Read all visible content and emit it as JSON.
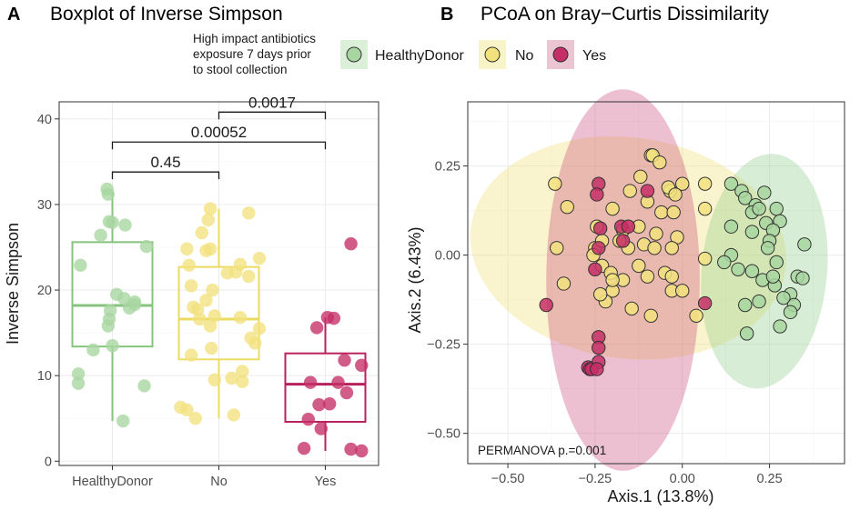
{
  "colors": {
    "HealthyDonor": "#86c47e",
    "No": "#ecdb62",
    "Yes": "#b8215d",
    "HealthyDonor_fill": "#a8d6a0",
    "No_fill": "#f2e27e",
    "Yes_fill": "#c52e66",
    "grid": "#ebebeb",
    "border": "#333333"
  },
  "legend": {
    "title_lines": [
      "High impact antibiotics",
      "exposure 7 days prior",
      "to stool collection"
    ],
    "items": [
      "HealthyDonor",
      "No",
      "Yes"
    ]
  },
  "chart_data": [
    {
      "panel": "A",
      "type": "box",
      "title": "Boxplot of Inverse Simpson",
      "xlabel": "",
      "ylabel": "Inverse Simpson",
      "ylim": [
        -0.5,
        42
      ],
      "yticks": [
        0,
        10,
        20,
        30,
        40
      ],
      "categories": [
        "HealthyDonor",
        "No",
        "Yes"
      ],
      "boxes": [
        {
          "group": "HealthyDonor",
          "q1": 13.4,
          "median": 18.2,
          "q3": 25.6,
          "whisker_low": 4.7,
          "whisker_high": 31.6
        },
        {
          "group": "No",
          "q1": 11.9,
          "median": 16.6,
          "q3": 22.7,
          "whisker_low": 5.0,
          "whisker_high": 29.5
        },
        {
          "group": "Yes",
          "q1": 4.6,
          "median": 9.0,
          "q3": 12.6,
          "whisker_low": 1.2,
          "whisker_high": 16.8
        }
      ],
      "points": {
        "HealthyDonor": [
          [
            -0.05,
            31.8
          ],
          [
            -0.04,
            31.2
          ],
          [
            -0.03,
            28.0
          ],
          [
            0.0,
            27.9
          ],
          [
            0.12,
            27.6
          ],
          [
            -0.11,
            26.4
          ],
          [
            0.32,
            25.1
          ],
          [
            -0.3,
            22.9
          ],
          [
            0.04,
            19.5
          ],
          [
            0.11,
            19.0
          ],
          [
            0.21,
            18.6
          ],
          [
            0.16,
            17.9
          ],
          [
            0.21,
            18.3
          ],
          [
            -0.02,
            17.6
          ],
          [
            -0.03,
            16.6
          ],
          [
            -0.04,
            15.8
          ],
          [
            -0.18,
            13.0
          ],
          [
            0.0,
            13.5
          ],
          [
            -0.32,
            10.2
          ],
          [
            -0.32,
            9.1
          ],
          [
            0.3,
            8.8
          ],
          [
            0.1,
            4.7
          ]
        ],
        "No": [
          [
            -0.08,
            29.5
          ],
          [
            0.28,
            29.0
          ],
          [
            -0.1,
            28.2
          ],
          [
            -0.16,
            26.7
          ],
          [
            -0.3,
            24.8
          ],
          [
            -0.12,
            24.6
          ],
          [
            -0.08,
            24.8
          ],
          [
            0.2,
            23.0
          ],
          [
            0.38,
            23.7
          ],
          [
            -0.28,
            22.9
          ],
          [
            0.08,
            22.0
          ],
          [
            0.16,
            22.1
          ],
          [
            0.28,
            21.6
          ],
          [
            -0.26,
            20.5
          ],
          [
            -0.06,
            20.0
          ],
          [
            -0.24,
            18.0
          ],
          [
            -0.12,
            18.8
          ],
          [
            -0.2,
            17.7
          ],
          [
            -0.18,
            16.6
          ],
          [
            -0.08,
            15.8
          ],
          [
            -0.04,
            17.0
          ],
          [
            0.2,
            16.8
          ],
          [
            0.38,
            15.5
          ],
          [
            0.3,
            14.4
          ],
          [
            0.34,
            13.8
          ],
          [
            -0.07,
            13.2
          ],
          [
            -0.26,
            12.4
          ],
          [
            -0.04,
            9.5
          ],
          [
            0.22,
            10.5
          ],
          [
            0.12,
            9.7
          ],
          [
            0.22,
            9.3
          ],
          [
            -0.36,
            6.3
          ],
          [
            -0.3,
            6.0
          ],
          [
            0.14,
            5.4
          ],
          [
            -0.22,
            5.0
          ]
        ],
        "Yes": [
          [
            0.24,
            25.4
          ],
          [
            -0.08,
            15.6
          ],
          [
            0.02,
            16.8
          ],
          [
            0.08,
            16.7
          ],
          [
            0.18,
            11.8
          ],
          [
            0.34,
            11.2
          ],
          [
            0.12,
            9.2
          ],
          [
            -0.14,
            9.2
          ],
          [
            0.2,
            8.0
          ],
          [
            0.04,
            6.7
          ],
          [
            -0.06,
            6.6
          ],
          [
            -0.16,
            4.9
          ],
          [
            -0.04,
            3.8
          ],
          [
            -0.2,
            1.5
          ],
          [
            0.24,
            1.4
          ],
          [
            0.34,
            1.2
          ]
        ]
      },
      "comparisons": [
        {
          "from": "HealthyDonor",
          "to": "No",
          "label": "0.45",
          "y": 33.8
        },
        {
          "from": "HealthyDonor",
          "to": "Yes",
          "label": "0.00052",
          "y": 37.3
        },
        {
          "from": "No",
          "to": "Yes",
          "label": "0.0017",
          "y": 40.8
        }
      ]
    },
    {
      "panel": "B",
      "type": "scatter",
      "title": "PCoA on Bray−Curtis Dissimilarity",
      "xlabel": "Axis.1 (13.8%)",
      "ylabel": "Axis.2 (6.43%)",
      "xlim": [
        -0.615,
        0.465
      ],
      "ylim": [
        -0.585,
        0.43
      ],
      "xticks": [
        -0.5,
        -0.25,
        0.0,
        0.25
      ],
      "xtick_labels": [
        "−0.50",
        "−0.25",
        "0.00",
        "0.25"
      ],
      "yticks": [
        -0.5,
        -0.25,
        0.0,
        0.25
      ],
      "ytick_labels": [
        "−0.50",
        "−0.25",
        "0.00",
        "0.25"
      ],
      "annotation": "PERMANOVA p.=0.001",
      "ellipses": [
        {
          "group": "No",
          "cx": -0.155,
          "cy": 0.02,
          "rx": 0.455,
          "ry": 0.31,
          "angle": 8
        },
        {
          "group": "Yes",
          "cx": -0.17,
          "cy": -0.07,
          "rx": 0.22,
          "ry": 0.535,
          "angle": 0
        },
        {
          "group": "HealthyDonor",
          "cx": 0.235,
          "cy": -0.045,
          "rx": 0.18,
          "ry": 0.33,
          "angle": 5
        }
      ],
      "points": {
        "No": [
          [
            -0.365,
            0.2
          ],
          [
            -0.33,
            0.135
          ],
          [
            -0.245,
            0.08
          ],
          [
            -0.25,
            0.02
          ],
          [
            -0.23,
            0.04
          ],
          [
            -0.23,
            -0.03
          ],
          [
            -0.205,
            -0.05
          ],
          [
            -0.17,
            -0.07
          ],
          [
            -0.2,
            -0.1
          ],
          [
            -0.12,
            0.22
          ],
          [
            -0.09,
            0.28
          ],
          [
            -0.085,
            0.28
          ],
          [
            -0.065,
            0.26
          ],
          [
            -0.1,
            0.15
          ],
          [
            -0.15,
            0.18
          ],
          [
            -0.2,
            0.13
          ],
          [
            -0.17,
            0.07
          ],
          [
            -0.155,
            0.02
          ],
          [
            -0.125,
            0.08
          ],
          [
            -0.11,
            0.03
          ],
          [
            -0.075,
            0.06
          ],
          [
            -0.08,
            0.02
          ],
          [
            -0.06,
            0.12
          ],
          [
            -0.025,
            0.12
          ],
          [
            -0.035,
            0.18
          ],
          [
            -0.04,
            0.19
          ],
          [
            0.0,
            0.2
          ],
          [
            -0.02,
            0.17
          ],
          [
            0.065,
            0.2
          ],
          [
            0.065,
            0.13
          ],
          [
            -0.015,
            0.05
          ],
          [
            -0.03,
            0.02
          ],
          [
            -0.05,
            -0.05
          ],
          [
            -0.03,
            -0.06
          ],
          [
            -0.1,
            -0.06
          ],
          [
            -0.125,
            -0.03
          ],
          [
            -0.03,
            -0.1
          ],
          [
            -0.09,
            -0.17
          ],
          [
            -0.145,
            -0.15
          ],
          [
            -0.22,
            -0.13
          ],
          [
            -0.2,
            -0.07
          ],
          [
            -0.235,
            -0.11
          ],
          [
            -0.255,
            0.0
          ],
          [
            0.065,
            -0.01
          ],
          [
            0.04,
            -0.17
          ],
          [
            0.0,
            -0.1
          ],
          [
            -0.34,
            -0.08
          ],
          [
            -0.18,
            0.04
          ],
          [
            -0.36,
            0.02
          ]
        ],
        "Yes": [
          [
            -0.24,
            0.2
          ],
          [
            -0.245,
            0.17
          ],
          [
            -0.175,
            0.08
          ],
          [
            -0.155,
            0.08
          ],
          [
            -0.235,
            0.075
          ],
          [
            -0.24,
            0.02
          ],
          [
            -0.17,
            0.04
          ],
          [
            -0.25,
            -0.04
          ],
          [
            -0.39,
            -0.14
          ],
          [
            0.065,
            -0.135
          ],
          [
            -0.24,
            -0.23
          ],
          [
            -0.24,
            -0.26
          ],
          [
            -0.24,
            -0.3
          ],
          [
            -0.27,
            -0.315
          ],
          [
            -0.265,
            -0.32
          ],
          [
            -0.26,
            -0.32
          ],
          [
            -0.245,
            -0.32
          ],
          [
            -0.1,
            0.18
          ]
        ],
        "HealthyDonor": [
          [
            0.14,
            0.2
          ],
          [
            0.17,
            0.18
          ],
          [
            0.235,
            0.175
          ],
          [
            0.18,
            0.16
          ],
          [
            0.21,
            0.14
          ],
          [
            0.2,
            0.12
          ],
          [
            0.22,
            0.13
          ],
          [
            0.27,
            0.13
          ],
          [
            0.24,
            0.09
          ],
          [
            0.28,
            0.095
          ],
          [
            0.26,
            0.07
          ],
          [
            0.2,
            0.065
          ],
          [
            0.25,
            0.04
          ],
          [
            0.245,
            0.02
          ],
          [
            0.14,
            0.08
          ],
          [
            0.14,
            0.0
          ],
          [
            0.12,
            -0.02
          ],
          [
            0.16,
            -0.04
          ],
          [
            0.2,
            -0.045
          ],
          [
            0.23,
            -0.07
          ],
          [
            0.265,
            -0.085
          ],
          [
            0.26,
            -0.06
          ],
          [
            0.33,
            -0.06
          ],
          [
            0.345,
            -0.065
          ],
          [
            0.31,
            -0.11
          ],
          [
            0.32,
            -0.14
          ],
          [
            0.31,
            -0.16
          ],
          [
            0.28,
            -0.2
          ],
          [
            0.22,
            -0.13
          ],
          [
            0.18,
            -0.14
          ],
          [
            0.185,
            -0.22
          ],
          [
            0.35,
            0.03
          ],
          [
            0.29,
            -0.12
          ],
          [
            0.27,
            -0.02
          ]
        ]
      }
    }
  ]
}
